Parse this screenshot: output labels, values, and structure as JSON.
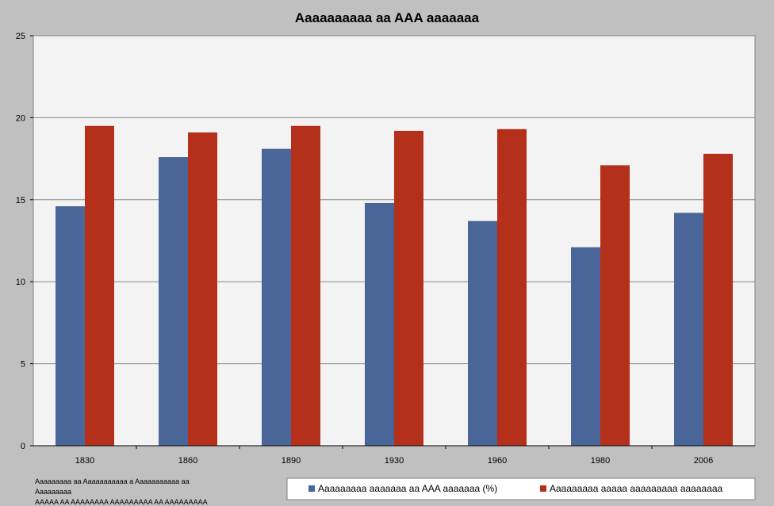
{
  "chart_data": {
    "type": "bar",
    "title": "Aaaaaaaaaa aa AAA aaaaaaa",
    "xlabel": "",
    "ylabel": "",
    "categories": [
      "1830",
      "1860",
      "1890",
      "1930",
      "1960",
      "1980",
      "2006"
    ],
    "series": [
      {
        "name": "Aaaaaaaaa aaaaaaa aa AAA aaaaaaa (%)",
        "color": "#4a6699",
        "values": [
          14.6,
          17.6,
          18.1,
          14.8,
          13.7,
          12.1,
          14.2
        ]
      },
      {
        "name": "Aaaaaaaaa aaaaa aaaaaaaaa aaaaaaaa",
        "color": "#b5301a",
        "values": [
          19.5,
          19.1,
          19.5,
          19.2,
          19.3,
          17.1,
          17.8
        ]
      }
    ],
    "ylim": [
      0,
      25
    ],
    "yticks": [
      0,
      5,
      10,
      15,
      20,
      25
    ],
    "grid": true,
    "legend_position": "bottom-right"
  },
  "footnote": {
    "lines": [
      "Aaaaaaaaa aa Aaaaaaaaaaa a Aaaaaaaaaaa aa",
      "Aaaaaaaaa",
      "AAAAA AA AAAAAAAA AAAAAAAAA AA AAAAAAAAA"
    ]
  },
  "colors": {
    "background": "#c0c0c0",
    "plot_area": "#f3f3f3",
    "gridline": "#888888"
  }
}
